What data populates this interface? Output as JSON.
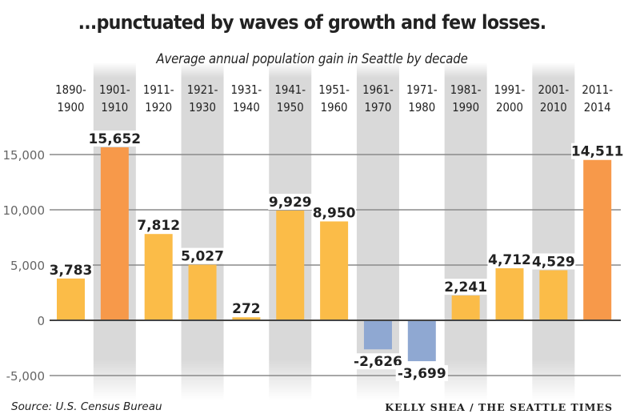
{
  "chart_data": {
    "type": "bar",
    "title": "...punctuated by waves of growth and few losses.",
    "subtitle": "Average annual population gain in Seattle by decade",
    "xlabel": "",
    "ylabel": "",
    "ylim": [
      -5000,
      15000
    ],
    "yticks": [
      15000,
      10000,
      5000,
      0,
      -5000
    ],
    "ytick_labels": [
      "15,000",
      "10,000",
      "5,000",
      "0",
      "-5,000"
    ],
    "grid": true,
    "categories": [
      [
        "1890-",
        "1900"
      ],
      [
        "1901-",
        "1910"
      ],
      [
        "1911-",
        "1920"
      ],
      [
        "1921-",
        "1930"
      ],
      [
        "1931-",
        "1940"
      ],
      [
        "1941-",
        "1950"
      ],
      [
        "1951-",
        "1960"
      ],
      [
        "1961-",
        "1970"
      ],
      [
        "1971-",
        "1980"
      ],
      [
        "1981-",
        "1990"
      ],
      [
        "1991-",
        "2000"
      ],
      [
        "2001-",
        "2010"
      ],
      [
        "2011-",
        "2014"
      ]
    ],
    "values": [
      3783,
      15652,
      7812,
      5027,
      272,
      9929,
      8950,
      -2626,
      -3699,
      2241,
      4712,
      4529,
      14511
    ],
    "value_labels": [
      "3,783",
      "15,652",
      "7,812",
      "5,027",
      "272",
      "9,929",
      "8,950",
      "-2,626",
      "-3,699",
      "2,241",
      "4,712",
      "4,529",
      "14,511"
    ],
    "bar_roles": [
      "gain",
      "peak",
      "gain",
      "gain",
      "gain",
      "gain",
      "gain",
      "loss",
      "loss",
      "gain",
      "gain",
      "gain",
      "peak"
    ],
    "shaded_columns": [
      1,
      3,
      5,
      7,
      9,
      11
    ],
    "colors": {
      "gain": "#fbbc48",
      "peak": "#f7994a",
      "loss": "#8fa8d2",
      "shade": "#d9d9d9",
      "grid": "#8a8a8a",
      "zero_line": "#444444"
    }
  },
  "footer": {
    "source": "Source: U.S. Census Bureau",
    "credit": "KELLY SHEA / THE SEATTLE TIMES"
  }
}
